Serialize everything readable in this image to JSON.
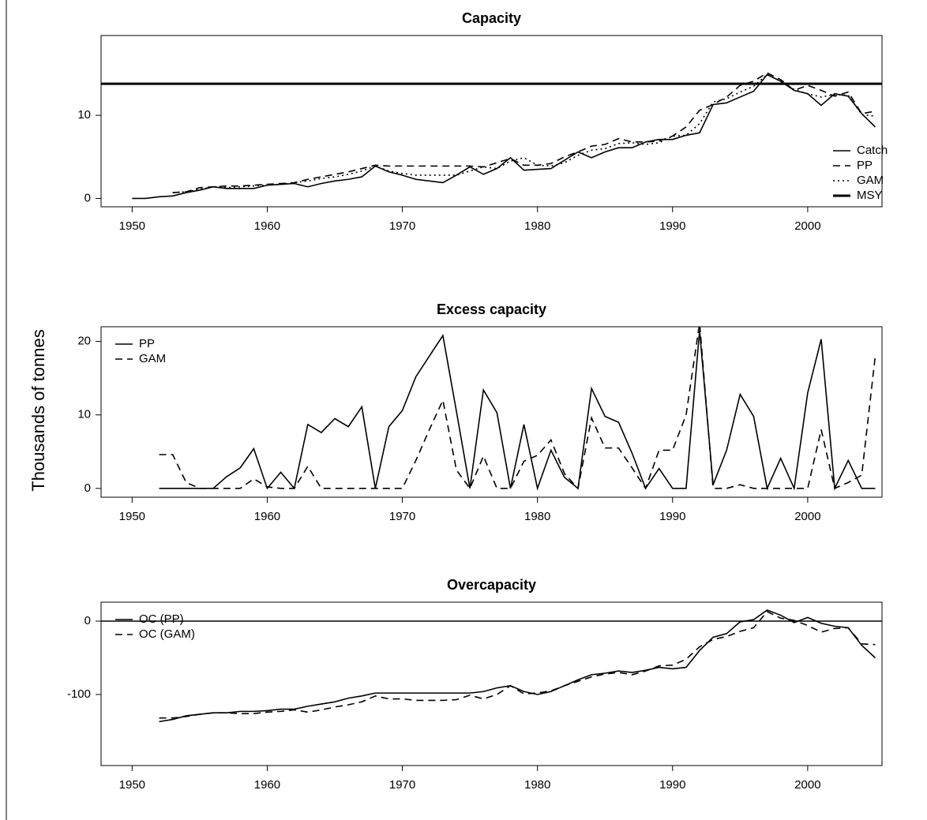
{
  "y_label": "Thousands of tonnes",
  "chart_data": [
    {
      "type": "line",
      "title": "Capacity",
      "x": [
        1950,
        1951,
        1952,
        1953,
        1954,
        1955,
        1956,
        1957,
        1958,
        1959,
        1960,
        1961,
        1962,
        1963,
        1964,
        1965,
        1966,
        1967,
        1968,
        1969,
        1970,
        1971,
        1972,
        1973,
        1974,
        1975,
        1976,
        1977,
        1978,
        1979,
        1980,
        1981,
        1982,
        1983,
        1984,
        1985,
        1986,
        1987,
        1988,
        1989,
        1990,
        1991,
        1992,
        1993,
        1994,
        1995,
        1996,
        1997,
        1998,
        1999,
        2000,
        2001,
        2002,
        2003,
        2004,
        2005
      ],
      "series": [
        {
          "name": "Catch",
          "color": "#000000",
          "dash": "solid",
          "values": [
            0,
            0,
            0.2,
            0.3,
            0.7,
            1.0,
            1.4,
            1.2,
            1.2,
            1.2,
            1.6,
            1.7,
            1.8,
            1.4,
            1.8,
            2.1,
            2.3,
            2.6,
            3.9,
            3.2,
            2.8,
            2.3,
            2.1,
            1.9,
            2.8,
            3.8,
            2.9,
            3.6,
            4.9,
            3.4,
            3.5,
            3.6,
            4.6,
            5.6,
            4.9,
            5.6,
            6.1,
            6.1,
            6.8,
            7.1,
            7.1,
            7.6,
            7.9,
            11.3,
            11.5,
            12.2,
            12.9,
            14.9,
            14.1,
            13.0,
            12.6,
            11.2,
            12.6,
            12.3,
            10.2,
            8.6
          ]
        },
        {
          "name": "PP",
          "color": "#000000",
          "dash": "dashed",
          "values": [
            null,
            null,
            null,
            0.7,
            0.8,
            1.3,
            1.4,
            1.5,
            1.5,
            1.6,
            1.7,
            1.8,
            1.9,
            2.3,
            2.6,
            2.9,
            3.2,
            3.6,
            4.0,
            3.9,
            3.9,
            3.9,
            3.9,
            3.9,
            3.9,
            3.9,
            3.8,
            4.3,
            4.8,
            4.0,
            4.0,
            4.2,
            5.0,
            5.6,
            6.3,
            6.5,
            7.2,
            6.8,
            6.8,
            6.9,
            7.5,
            8.6,
            10.6,
            11.3,
            12.2,
            13.6,
            14.1,
            15.1,
            14.3,
            13.0,
            13.6,
            13.0,
            12.3,
            12.8,
            10.2,
            10.5
          ]
        },
        {
          "name": "GAM",
          "color": "#000000",
          "dash": "dotted",
          "values": [
            null,
            null,
            null,
            0.7,
            0.8,
            1.1,
            1.4,
            1.3,
            1.4,
            1.5,
            1.6,
            1.7,
            1.9,
            2.1,
            2.4,
            2.6,
            2.9,
            3.3,
            3.9,
            3.3,
            3.0,
            2.8,
            2.8,
            2.8,
            2.8,
            3.3,
            3.8,
            3.6,
            4.5,
            4.9,
            4.0,
            3.9,
            4.3,
            5.2,
            5.8,
            6.0,
            6.6,
            6.7,
            6.5,
            6.7,
            7.5,
            7.6,
            9.0,
            11.6,
            12.0,
            12.8,
            13.5,
            14.9,
            14.1,
            13.1,
            12.6,
            12.2,
            12.5,
            12.4,
            10.1,
            9.9
          ]
        }
      ],
      "reference_lines": [
        {
          "name": "MSY",
          "value": 13.8,
          "color": "#000000"
        }
      ],
      "xlim": [
        1947.7,
        2005.5
      ],
      "xticks": [
        1950,
        1960,
        1970,
        1980,
        1990,
        2000
      ],
      "ylim": [
        -1,
        19.6
      ],
      "yticks": [
        0,
        10
      ],
      "legend": "bottom right"
    },
    {
      "type": "line",
      "title": "Excess capacity",
      "x": [
        1952,
        1953,
        1954,
        1955,
        1956,
        1957,
        1958,
        1959,
        1960,
        1961,
        1962,
        1963,
        1964,
        1965,
        1966,
        1967,
        1968,
        1969,
        1970,
        1971,
        1972,
        1973,
        1974,
        1975,
        1976,
        1977,
        1978,
        1979,
        1980,
        1981,
        1982,
        1983,
        1984,
        1985,
        1986,
        1987,
        1988,
        1989,
        1990,
        1991,
        1992,
        1993,
        1994,
        1995,
        1996,
        1997,
        1998,
        1999,
        2000,
        2001,
        2002,
        2003,
        2004,
        2005
      ],
      "series": [
        {
          "name": "PP",
          "color": "#000000",
          "dash": "solid",
          "values": [
            0,
            0,
            0,
            0,
            0,
            1.6,
            2.8,
            5.4,
            0,
            2.2,
            0,
            8.7,
            7.6,
            9.5,
            8.4,
            11.1,
            0,
            8.4,
            10.6,
            15.2,
            18.0,
            20.8,
            10.5,
            0,
            13.4,
            10.3,
            0,
            8.7,
            0,
            5.2,
            1.5,
            0,
            13.6,
            9.8,
            9.0,
            4.8,
            0,
            2.7,
            0,
            0,
            21.5,
            0.5,
            5.2,
            12.8,
            9.8,
            0,
            4.1,
            0,
            13.0,
            20.3,
            0,
            3.8,
            0,
            0
          ]
        },
        {
          "name": "GAM",
          "color": "#000000",
          "dash": "dashed",
          "values": [
            4.6,
            4.6,
            0.8,
            0,
            0,
            0,
            0,
            1.3,
            0.2,
            0,
            0,
            3.0,
            0,
            0,
            0,
            0,
            0,
            0,
            0,
            3.8,
            8.0,
            12.0,
            2.5,
            0,
            4.4,
            0,
            0,
            3.7,
            4.5,
            6.6,
            2.0,
            0,
            9.6,
            5.5,
            5.5,
            2.8,
            0,
            5.2,
            5.2,
            10.0,
            22.5,
            0,
            0,
            0.5,
            0,
            0,
            0,
            0,
            0,
            8.0,
            0,
            0.8,
            1.8,
            18.0
          ]
        }
      ],
      "xlim": [
        1947.7,
        2005.5
      ],
      "xticks": [
        1950,
        1960,
        1970,
        1980,
        1990,
        2000
      ],
      "ylim": [
        -1.2,
        22
      ],
      "yticks": [
        0,
        10,
        20
      ],
      "legend": "top left"
    },
    {
      "type": "line",
      "title": "Overcapacity",
      "x": [
        1952,
        1953,
        1954,
        1955,
        1956,
        1957,
        1958,
        1959,
        1960,
        1961,
        1962,
        1963,
        1964,
        1965,
        1966,
        1967,
        1968,
        1969,
        1970,
        1971,
        1972,
        1973,
        1974,
        1975,
        1976,
        1977,
        1978,
        1979,
        1980,
        1981,
        1982,
        1983,
        1984,
        1985,
        1986,
        1987,
        1988,
        1989,
        1990,
        1991,
        1992,
        1993,
        1994,
        1995,
        1996,
        1997,
        1998,
        1999,
        2000,
        2001,
        2002,
        2003,
        2004,
        2005
      ],
      "series": [
        {
          "name": "OC (PP)",
          "color": "#000000",
          "dash": "solid",
          "values": [
            -137,
            -134,
            -129,
            -127,
            -125,
            -125,
            -123,
            -123,
            -122,
            -120,
            -120,
            -116,
            -113,
            -110,
            -105,
            -102,
            -98,
            -98,
            -98,
            -98,
            -98,
            -98,
            -98,
            -98,
            -96,
            -91,
            -88,
            -96,
            -100,
            -96,
            -88,
            -80,
            -73,
            -71,
            -68,
            -70,
            -67,
            -63,
            -65,
            -63,
            -40,
            -22,
            -17,
            -1,
            2,
            15,
            8,
            -2,
            5,
            -3,
            -7,
            -9,
            -33,
            -50
          ]
        },
        {
          "name": "OC (GAM)",
          "color": "#000000",
          "dash": "dashed",
          "values": [
            -132,
            -132,
            -130,
            -127,
            -125,
            -125,
            -126,
            -126,
            -124,
            -123,
            -121,
            -124,
            -121,
            -117,
            -114,
            -110,
            -102,
            -106,
            -106,
            -108,
            -108,
            -108,
            -107,
            -101,
            -106,
            -100,
            -88,
            -99,
            -98,
            -95,
            -88,
            -82,
            -76,
            -72,
            -70,
            -73,
            -68,
            -61,
            -60,
            -52,
            -35,
            -25,
            -21,
            -14,
            -9,
            13,
            4,
            1,
            -6,
            -15,
            -10,
            -9,
            -31,
            -32
          ]
        }
      ],
      "reference_lines": [
        {
          "value": 0,
          "color": "#000000"
        }
      ],
      "xlim": [
        1947.7,
        2005.5
      ],
      "xticks": [
        1950,
        1960,
        1970,
        1980,
        1990,
        2000
      ],
      "ylim": [
        -196.8,
        25.8
      ],
      "yticks": [
        0,
        -100
      ],
      "legend": "top left"
    }
  ]
}
